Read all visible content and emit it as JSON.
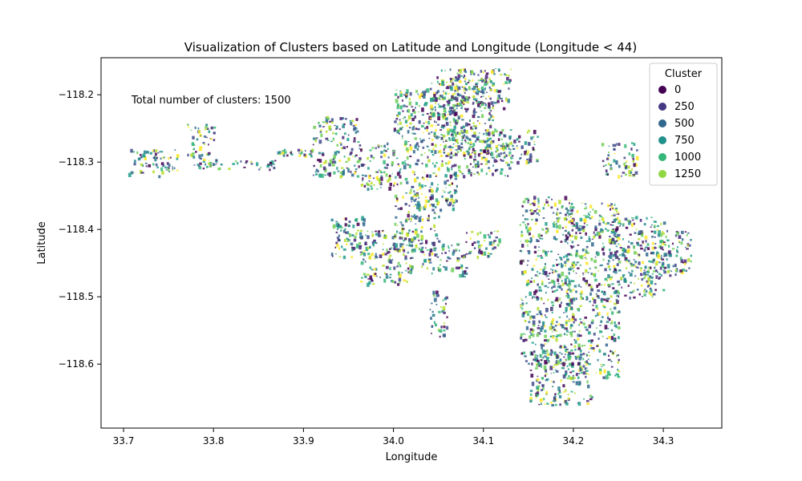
{
  "chart_data": {
    "type": "scatter",
    "title": "Visualization of Clusters based on Latitude and Longitude (Longitude < 44)",
    "xlabel": "Longitude",
    "ylabel": "Latitude",
    "xlim": [
      33.675,
      34.365
    ],
    "ylim": [
      -118.695,
      -118.145
    ],
    "x_ticks": [
      33.7,
      33.8,
      33.9,
      34.0,
      34.1,
      34.2,
      34.3
    ],
    "x_tick_labels": [
      "33.7",
      "33.8",
      "33.9",
      "34.0",
      "34.1",
      "34.2",
      "34.3"
    ],
    "y_ticks": [
      -118.2,
      -118.3,
      -118.4,
      -118.5,
      -118.6
    ],
    "y_tick_labels": [
      "−118.2",
      "−118.3",
      "−118.4",
      "−118.5",
      "−118.6"
    ],
    "annotation": "Total number of clusters: 1500",
    "grid": false,
    "colormap": "viridis",
    "legend": {
      "title": "Cluster",
      "placement": "top-right",
      "entries": [
        {
          "label": "0",
          "color": "#440154"
        },
        {
          "label": "250",
          "color": "#443983"
        },
        {
          "label": "500",
          "color": "#31688e"
        },
        {
          "label": "750",
          "color": "#21918c"
        },
        {
          "label": "1000",
          "color": "#35b779"
        },
        {
          "label": "1250",
          "color": "#90d743"
        }
      ]
    },
    "palette": [
      "#440154",
      "#482878",
      "#3e4989",
      "#31688e",
      "#26828e",
      "#1f9e89",
      "#35b779",
      "#6ece58",
      "#b5de2b",
      "#fde725"
    ],
    "regions": [
      {
        "x": [
          33.705,
          33.76
        ],
        "y": [
          -118.32,
          -118.28
        ]
      },
      {
        "x": [
          33.77,
          33.8
        ],
        "y": [
          -118.31,
          -118.24
        ]
      },
      {
        "x": [
          33.8,
          33.87
        ],
        "y": [
          -118.31,
          -118.295
        ]
      },
      {
        "x": [
          33.87,
          33.91
        ],
        "y": [
          -118.29,
          -118.28
        ]
      },
      {
        "x": [
          33.91,
          33.96
        ],
        "y": [
          -118.32,
          -118.23
        ]
      },
      {
        "x": [
          33.96,
          34.0
        ],
        "y": [
          -118.34,
          -118.27
        ]
      },
      {
        "x": [
          34.0,
          34.07
        ],
        "y": [
          -118.37,
          -118.19
        ]
      },
      {
        "x": [
          34.04,
          34.11
        ],
        "y": [
          -118.29,
          -118.17
        ]
      },
      {
        "x": [
          34.05,
          34.13
        ],
        "y": [
          -118.22,
          -118.16
        ]
      },
      {
        "x": [
          34.07,
          34.13
        ],
        "y": [
          -118.32,
          -118.25
        ]
      },
      {
        "x": [
          34.1,
          34.16
        ],
        "y": [
          -118.3,
          -118.25
        ]
      },
      {
        "x": [
          33.93,
          33.97
        ],
        "y": [
          -118.44,
          -118.38
        ]
      },
      {
        "x": [
          33.96,
          34.02
        ],
        "y": [
          -118.48,
          -118.4
        ]
      },
      {
        "x": [
          34.0,
          34.05
        ],
        "y": [
          -118.43,
          -118.36
        ]
      },
      {
        "x": [
          34.03,
          34.08
        ],
        "y": [
          -118.47,
          -118.42
        ]
      },
      {
        "x": [
          34.08,
          34.12
        ],
        "y": [
          -118.44,
          -118.4
        ]
      },
      {
        "x": [
          34.14,
          34.2
        ],
        "y": [
          -118.6,
          -118.35
        ]
      },
      {
        "x": [
          34.19,
          34.25
        ],
        "y": [
          -118.62,
          -118.36
        ]
      },
      {
        "x": [
          34.24,
          34.3
        ],
        "y": [
          -118.5,
          -118.38
        ]
      },
      {
        "x": [
          34.28,
          34.33
        ],
        "y": [
          -118.47,
          -118.4
        ]
      },
      {
        "x": [
          34.15,
          34.22
        ],
        "y": [
          -118.66,
          -118.58
        ]
      },
      {
        "x": [
          34.23,
          34.27
        ],
        "y": [
          -118.32,
          -118.27
        ]
      },
      {
        "x": [
          34.04,
          34.06
        ],
        "y": [
          -118.56,
          -118.49
        ]
      }
    ],
    "point_count": 3400
  }
}
